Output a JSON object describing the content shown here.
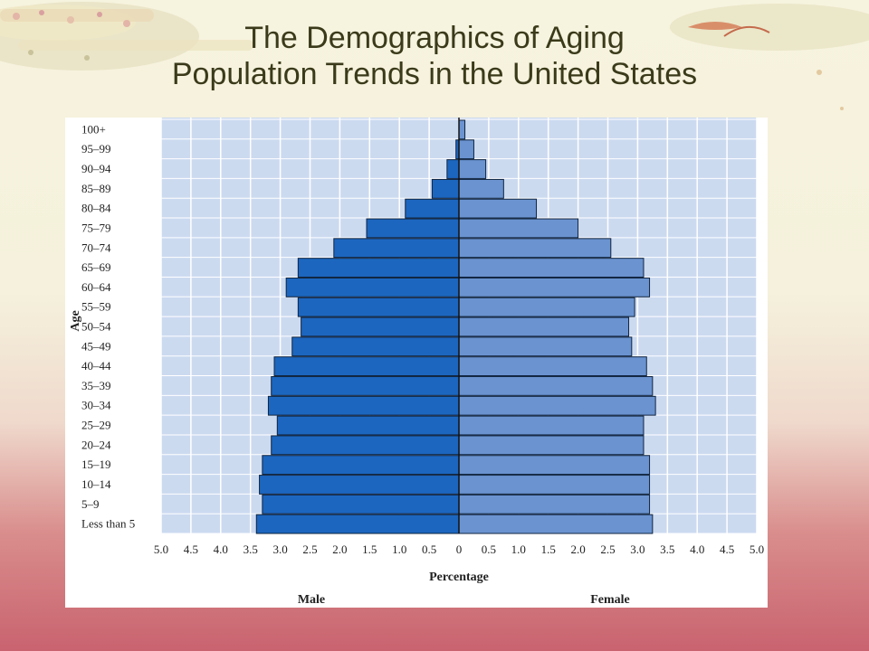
{
  "slide": {
    "title_line1": "The Demographics of Aging",
    "title_line2": "Population Trends in the United States"
  },
  "colors": {
    "male": "#1c66bf",
    "female": "#6a93d0",
    "plot_bg": "#ccdaf0",
    "grid": "#ffffff"
  },
  "chart_data": {
    "type": "bar",
    "orientation": "horizontal",
    "subtype": "population-pyramid",
    "categories": [
      "100+",
      "95–99",
      "90–94",
      "85–89",
      "80–84",
      "75–79",
      "70–74",
      "65–69",
      "60–64",
      "55–59",
      "50–54",
      "45–49",
      "40–44",
      "35–39",
      "30–34",
      "25–29",
      "20–24",
      "15–19",
      "10–14",
      "5–9",
      "Less than 5"
    ],
    "series": [
      {
        "name": "Male",
        "values": [
          0.0,
          0.05,
          0.2,
          0.45,
          0.9,
          1.55,
          2.1,
          2.7,
          2.9,
          2.7,
          2.65,
          2.8,
          3.1,
          3.15,
          3.2,
          3.05,
          3.15,
          3.3,
          3.35,
          3.3,
          3.4
        ]
      },
      {
        "name": "Female",
        "values": [
          0.1,
          0.25,
          0.45,
          0.75,
          1.3,
          2.0,
          2.55,
          3.1,
          3.2,
          2.95,
          2.85,
          2.9,
          3.15,
          3.25,
          3.3,
          3.1,
          3.1,
          3.2,
          3.2,
          3.2,
          3.25
        ]
      }
    ],
    "x_ticks_left": [
      "5.0",
      "4.5",
      "4.0",
      "3.5",
      "3.0",
      "2.5",
      "2.0",
      "1.5",
      "1.0",
      "0.5"
    ],
    "x_tick_center": "0",
    "x_ticks_right": [
      "0.5",
      "1.0",
      "1.5",
      "2.0",
      "2.5",
      "3.0",
      "3.5",
      "4.0",
      "4.5",
      "5.0"
    ],
    "xlim": [
      0,
      5.0
    ],
    "xlabel": "Percentage",
    "ylabel": "Age",
    "side_label_left": "Male",
    "side_label_right": "Female",
    "grid": true
  }
}
